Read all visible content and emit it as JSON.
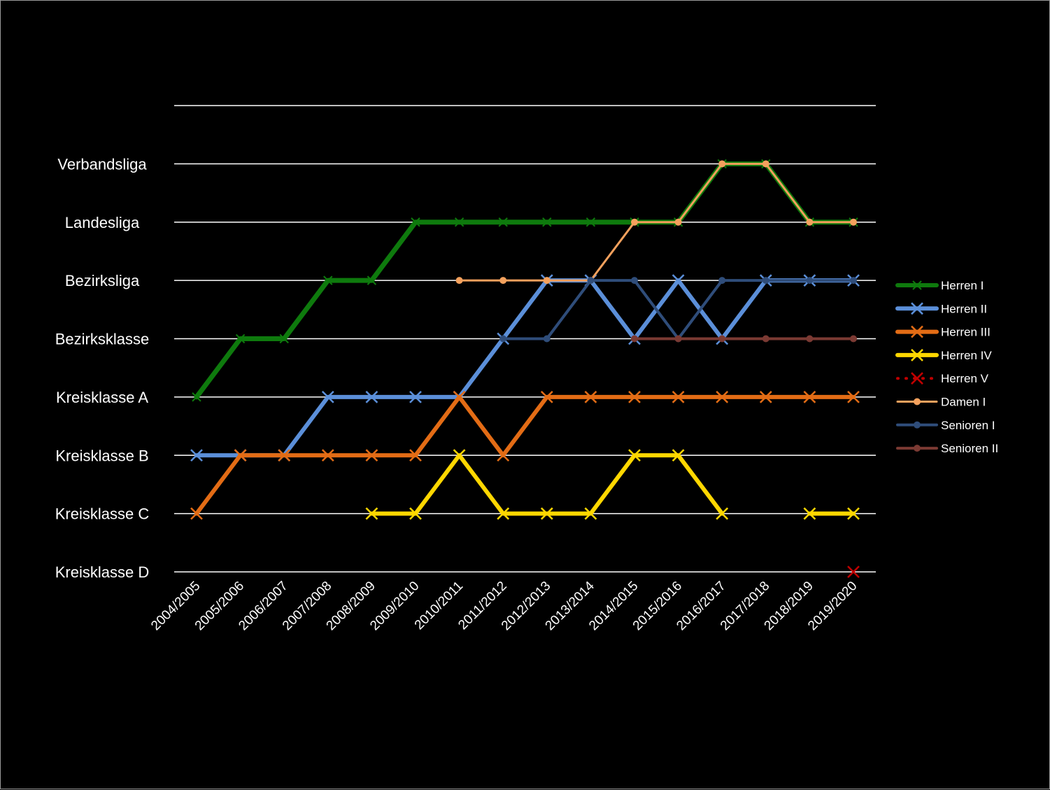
{
  "chart_data": {
    "type": "line",
    "title": "",
    "xlabel": "",
    "ylabel": "",
    "categories": [
      "2004/2005",
      "2005/2006",
      "2006/2007",
      "2007/2008",
      "2008/2009",
      "2009/2010",
      "2010/2011",
      "2011/2012",
      "2012/2013",
      "2013/2014",
      "2014/2015",
      "2015/2016",
      "2016/2017",
      "2017/2018",
      "2018/2019",
      "2019/2020"
    ],
    "y_levels": [
      "Kreisklasse D",
      "Kreisklasse C",
      "Kreisklasse B",
      "Kreisklasse A",
      "Bezirksklasse",
      "Bezirksliga",
      "Landesliga",
      "Verbandsliga"
    ],
    "ylim": [
      0,
      8
    ],
    "grid": true,
    "legend_position": "right",
    "series": [
      {
        "name": "Herren I",
        "color": "#0e7a0d",
        "width": 7,
        "marker": "x-small",
        "dash": "",
        "values": [
          3,
          4,
          4,
          5,
          5,
          6,
          6,
          6,
          6,
          6,
          6,
          6,
          7,
          7,
          6,
          6
        ]
      },
      {
        "name": "Herren II",
        "color": "#5b8fd9",
        "width": 6,
        "marker": "x",
        "dash": "",
        "values": [
          2,
          2,
          2,
          3,
          3,
          3,
          3,
          4,
          5,
          5,
          4,
          5,
          4,
          5,
          5,
          5
        ]
      },
      {
        "name": "Herren III",
        "color": "#e36c15",
        "width": 6,
        "marker": "x",
        "dash": "",
        "values": [
          1,
          2,
          2,
          2,
          2,
          2,
          3,
          2,
          3,
          3,
          3,
          3,
          3,
          3,
          3,
          3
        ]
      },
      {
        "name": "Herren IV",
        "color": "#ffd700",
        "width": 6,
        "marker": "x",
        "dash": "",
        "values": [
          null,
          null,
          null,
          null,
          1,
          1,
          2,
          1,
          1,
          1,
          2,
          2,
          1,
          null,
          1,
          1
        ]
      },
      {
        "name": "Herren V",
        "color": "#c00000",
        "width": 3,
        "marker": "x",
        "dash": "dot",
        "values": [
          null,
          null,
          null,
          null,
          null,
          null,
          null,
          null,
          null,
          null,
          null,
          null,
          null,
          null,
          null,
          0
        ]
      },
      {
        "name": "Damen I",
        "color": "#f4a15d",
        "width": 3,
        "marker": "dot",
        "dash": "",
        "values": [
          null,
          null,
          null,
          null,
          null,
          null,
          5,
          5,
          5,
          5,
          6,
          6,
          7,
          7,
          6,
          6
        ]
      },
      {
        "name": "Senioren I",
        "color": "#2f4d7a",
        "width": 4,
        "marker": "dot",
        "dash": "",
        "values": [
          null,
          null,
          null,
          null,
          null,
          null,
          null,
          4,
          4,
          5,
          5,
          4,
          5,
          5,
          5,
          5
        ]
      },
      {
        "name": "Senioren II",
        "color": "#7b3a33",
        "width": 4,
        "marker": "dot",
        "dash": "",
        "values": [
          null,
          null,
          null,
          null,
          null,
          null,
          null,
          null,
          null,
          null,
          4,
          4,
          4,
          4,
          4,
          4
        ]
      }
    ]
  }
}
